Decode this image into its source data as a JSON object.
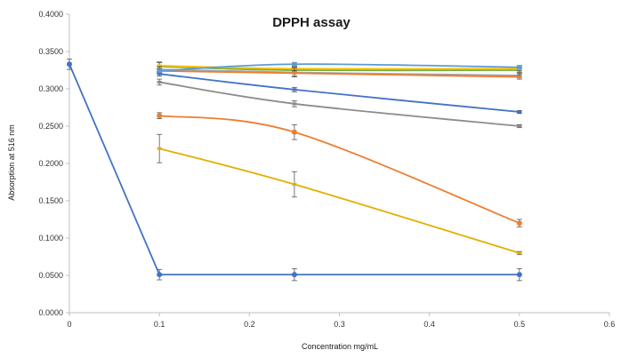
{
  "chart_data": {
    "type": "line",
    "title": "DPPH assay",
    "xlabel": "Concentration mg/mL",
    "ylabel": "Absorption at 516 nm",
    "xlim": [
      0,
      0.6
    ],
    "ylim": [
      0,
      0.4
    ],
    "x_ticks": [
      "0",
      "0.1",
      "0.2",
      "0.3",
      "0.4",
      "0.5",
      "0.6"
    ],
    "y_ticks": [
      "0.0000",
      "0.0500",
      "0.1000",
      "0.1500",
      "0.2000",
      "0.2500",
      "0.3000",
      "0.3500",
      "0.4000"
    ],
    "grid": false,
    "legend": "none",
    "series": [
      {
        "color": "#4472c4",
        "x": [
          0,
          0.1,
          0.25,
          0.5
        ],
        "y": [
          0.333,
          0.051,
          0.051,
          0.051
        ],
        "err": [
          0.007,
          0.007,
          0.008,
          0.008
        ],
        "marker": "circle"
      },
      {
        "color": "#ed7d31",
        "x": [
          0.1,
          0.25,
          0.5
        ],
        "y": [
          0.264,
          0.242,
          0.12
        ],
        "err": [
          0.004,
          0.01,
          0.005
        ],
        "marker": "circle"
      },
      {
        "color": "#e0b000",
        "x": [
          0.1,
          0.25,
          0.5
        ],
        "y": [
          0.22,
          0.172,
          0.08
        ],
        "err": [
          0.019,
          0.017,
          0.002
        ],
        "marker": "dash"
      },
      {
        "color": "#4472c4",
        "x": [
          0.1,
          0.25,
          0.5
        ],
        "y": [
          0.32,
          0.299,
          0.269
        ],
        "err": [
          0.003,
          0.003,
          0.002
        ],
        "marker": "dash"
      },
      {
        "color": "#8c8c8c",
        "x": [
          0.1,
          0.25,
          0.5
        ],
        "y": [
          0.309,
          0.28,
          0.25
        ],
        "err": [
          0.004,
          0.004,
          0.002
        ],
        "marker": "dash"
      },
      {
        "color": "#70ad47",
        "x": [
          0.1,
          0.25,
          0.5
        ],
        "y": [
          0.33,
          0.325,
          0.325
        ],
        "err": [
          0.006,
          0.004,
          0.003
        ],
        "marker": "dash"
      },
      {
        "color": "#ffc000",
        "x": [
          0.1,
          0.25,
          0.5
        ],
        "y": [
          0.331,
          0.327,
          0.327
        ],
        "err": [
          0.004,
          0.003,
          0.003
        ],
        "marker": "dash"
      },
      {
        "color": "#a5a5a5",
        "x": [
          0.1,
          0.25,
          0.5
        ],
        "y": [
          0.326,
          0.322,
          0.318
        ],
        "err": [
          0.004,
          0.006,
          0.003
        ],
        "marker": "dash"
      },
      {
        "color": "#ed7d31",
        "x": [
          0.1,
          0.25,
          0.5
        ],
        "y": [
          0.324,
          0.321,
          0.316
        ],
        "err": [
          0.003,
          0.004,
          0.003
        ],
        "marker": "dash"
      },
      {
        "color": "#5b9bd5",
        "x": [
          0.1,
          0.25,
          0.5
        ],
        "y": [
          0.324,
          0.333,
          0.329
        ],
        "err": [
          0.003,
          0.002,
          0.002
        ],
        "marker": "square"
      }
    ]
  }
}
